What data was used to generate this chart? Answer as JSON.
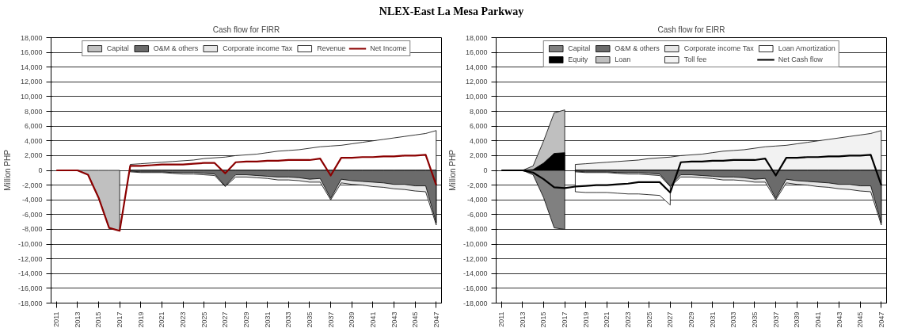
{
  "chart_data": [
    {
      "type": "area",
      "subtitle": "NLEX-East La Mesa Parkway",
      "title": "Cash flow for FIRR",
      "ylabel": "Million PHP",
      "legend": "top",
      "grid": "y",
      "x": [
        2011,
        2012,
        2013,
        2014,
        2015,
        2016,
        2017,
        2018,
        2019,
        2020,
        2021,
        2022,
        2023,
        2024,
        2025,
        2026,
        2027,
        2028,
        2029,
        2030,
        2031,
        2032,
        2033,
        2034,
        2035,
        2036,
        2037,
        2038,
        2039,
        2040,
        2041,
        2042,
        2043,
        2044,
        2045,
        2046,
        2047
      ],
      "xlim": [
        2010.5,
        2047.5
      ],
      "xticks": [
        2011,
        2013,
        2015,
        2017,
        2019,
        2021,
        2023,
        2025,
        2027,
        2029,
        2031,
        2033,
        2035,
        2037,
        2039,
        2041,
        2043,
        2045,
        2047
      ],
      "ylim": [
        -18000,
        18000
      ],
      "yticks": [
        {
          "value": -18000,
          "label": "-18,000"
        },
        {
          "value": -16000,
          "label": "-16,000"
        },
        {
          "value": -14000,
          "label": "-14,000"
        },
        {
          "value": -12000,
          "label": "-12,000"
        },
        {
          "value": -10000,
          "label": "-10,000"
        },
        {
          "value": -8000,
          "label": "-8,000"
        },
        {
          "value": -6000,
          "label": "-6,000"
        },
        {
          "value": -4000,
          "label": "-4,000"
        },
        {
          "value": -2000,
          "label": "-2,000"
        },
        0,
        {
          "value": 2000,
          "label": "2,000"
        },
        {
          "value": 4000,
          "label": "4,000"
        },
        {
          "value": 6000,
          "label": "6,000"
        },
        {
          "value": 8000,
          "label": "8,000"
        },
        {
          "value": 10000,
          "label": "10,000"
        },
        {
          "value": 12000,
          "label": "12,000"
        },
        {
          "value": 14000,
          "label": "14,000"
        },
        {
          "value": 16000,
          "label": "16,000"
        },
        {
          "value": 18000,
          "label": "18,000"
        }
      ],
      "series": [
        {
          "name": "Capital",
          "color": "#c0c0c0",
          "values": [
            null,
            null,
            0,
            -600,
            -3700,
            -7800,
            -8200,
            null,
            null,
            null,
            null,
            null,
            null,
            null,
            null,
            null,
            null,
            null,
            null,
            null,
            null,
            null,
            null,
            null,
            null,
            null,
            null,
            null,
            null,
            null,
            null,
            null,
            null,
            null,
            null,
            null,
            null
          ]
        },
        {
          "name": "O&M & others",
          "color": "#6b6b6b",
          "values": [
            null,
            null,
            null,
            null,
            null,
            null,
            null,
            -100,
            -200,
            -200,
            -200,
            -300,
            -300,
            -300,
            -400,
            -500,
            -2100,
            -600,
            -600,
            -700,
            -800,
            -900,
            -900,
            -1000,
            -1200,
            -1100,
            -3800,
            -1200,
            -1400,
            -1500,
            -1600,
            -1700,
            -1900,
            -1900,
            -2100,
            -2100,
            -7100
          ]
        },
        {
          "name": "Corporate income Tax",
          "color": "#e6e6e6",
          "values": [
            null,
            null,
            null,
            null,
            null,
            null,
            null,
            -200,
            -300,
            -300,
            -300,
            -400,
            -500,
            -500,
            -600,
            -700,
            -2200,
            -900,
            -900,
            -1000,
            -1100,
            -1300,
            -1300,
            -1400,
            -1600,
            -1600,
            -4000,
            -1700,
            -1900,
            -2000,
            -2200,
            -2300,
            -2500,
            -2600,
            -2800,
            -2900,
            -7400
          ]
        },
        {
          "name": "Revenue",
          "color": "#ffffff",
          "values": [
            null,
            null,
            null,
            null,
            null,
            null,
            null,
            800,
            900,
            1000,
            1100,
            1200,
            1300,
            1400,
            1600,
            1700,
            1800,
            2000,
            2100,
            2200,
            2400,
            2600,
            2700,
            2800,
            3000,
            3200,
            3300,
            3400,
            3600,
            3800,
            4000,
            4200,
            4400,
            4600,
            4800,
            5000,
            5400
          ]
        },
        {
          "name": "Net Income",
          "type": "line",
          "color": "#8b0000",
          "values": [
            0,
            0,
            0,
            -600,
            -3700,
            -7800,
            -8200,
            600,
            600,
            700,
            800,
            800,
            800,
            900,
            1000,
            1000,
            -400,
            1100,
            1200,
            1200,
            1300,
            1300,
            1400,
            1400,
            1400,
            1600,
            -700,
            1700,
            1700,
            1800,
            1800,
            1900,
            1900,
            2000,
            2000,
            2100,
            -2000
          ]
        }
      ]
    },
    {
      "type": "area",
      "title": "Cash flow for EIRR",
      "ylabel": "Million PHP",
      "legend": "top",
      "grid": "y",
      "x": [
        2011,
        2012,
        2013,
        2014,
        2015,
        2016,
        2017,
        2018,
        2019,
        2020,
        2021,
        2022,
        2023,
        2024,
        2025,
        2026,
        2027,
        2028,
        2029,
        2030,
        2031,
        2032,
        2033,
        2034,
        2035,
        2036,
        2037,
        2038,
        2039,
        2040,
        2041,
        2042,
        2043,
        2044,
        2045,
        2046,
        2047
      ],
      "xlim": [
        2010.5,
        2047.5
      ],
      "xticks": [
        2011,
        2013,
        2015,
        2017,
        2019,
        2021,
        2023,
        2025,
        2027,
        2029,
        2031,
        2033,
        2035,
        2037,
        2039,
        2041,
        2043,
        2045,
        2047
      ],
      "ylim": [
        -18000,
        18000
      ],
      "yticks": [
        {
          "value": -18000,
          "label": "-18,000"
        },
        {
          "value": -16000,
          "label": "-16,000"
        },
        {
          "value": -14000,
          "label": "-14,000"
        },
        {
          "value": -12000,
          "label": "-12,000"
        },
        {
          "value": -10000,
          "label": "-10,000"
        },
        {
          "value": -8000,
          "label": "-8,000"
        },
        {
          "value": -6000,
          "label": "-6,000"
        },
        {
          "value": -4000,
          "label": "-4,000"
        },
        {
          "value": -2000,
          "label": "-2,000"
        },
        0,
        {
          "value": 2000,
          "label": "2,000"
        },
        {
          "value": 4000,
          "label": "4,000"
        },
        {
          "value": 6000,
          "label": "6,000"
        },
        {
          "value": 8000,
          "label": "8,000"
        },
        {
          "value": 10000,
          "label": "10,000"
        },
        {
          "value": 12000,
          "label": "12,000"
        },
        {
          "value": 14000,
          "label": "14,000"
        },
        {
          "value": 16000,
          "label": "16,000"
        },
        {
          "value": 18000,
          "label": "18,000"
        }
      ],
      "series": [
        {
          "name": "Capital",
          "color": "#808080",
          "values": [
            null,
            null,
            0,
            -600,
            -3700,
            -7800,
            -8000,
            null,
            null,
            null,
            null,
            null,
            null,
            null,
            null,
            null,
            null,
            null,
            null,
            null,
            null,
            null,
            null,
            null,
            null,
            null,
            null,
            null,
            null,
            null,
            null,
            null,
            null,
            null,
            null,
            null,
            null
          ]
        },
        {
          "name": "O&M & others",
          "color": "#6b6b6b",
          "values": [
            null,
            null,
            null,
            null,
            null,
            null,
            null,
            -100,
            -200,
            -200,
            -200,
            -300,
            -300,
            -300,
            -400,
            -500,
            -2100,
            -600,
            -600,
            -700,
            -800,
            -900,
            -900,
            -1000,
            -1200,
            -1100,
            -3800,
            -1200,
            -1400,
            -1500,
            -1600,
            -1700,
            -1900,
            -1900,
            -2100,
            -2100,
            -7100
          ]
        },
        {
          "name": "Corporate income Tax",
          "color": "#e6e6e6",
          "values": [
            null,
            null,
            null,
            null,
            null,
            null,
            null,
            -200,
            -300,
            -300,
            -300,
            -400,
            -500,
            -500,
            -600,
            -700,
            -2200,
            -900,
            -900,
            -1000,
            -1100,
            -1300,
            -1300,
            -1400,
            -1600,
            -1600,
            -4000,
            -1700,
            -1900,
            -2000,
            -2200,
            -2300,
            -2500,
            -2600,
            -2800,
            -2900,
            -7400
          ]
        },
        {
          "name": "Loan Amortization",
          "color": "#ffffff",
          "values": [
            null,
            null,
            null,
            null,
            null,
            null,
            null,
            -2900,
            -3000,
            -3000,
            -3000,
            -3100,
            -3200,
            -3200,
            -3300,
            -3400,
            -4700,
            null,
            null,
            null,
            null,
            null,
            null,
            null,
            null,
            null,
            null,
            null,
            null,
            null,
            null,
            null,
            null,
            null,
            null,
            null,
            null
          ]
        },
        {
          "name": "Equity",
          "color": "#000000",
          "values": [
            null,
            null,
            0,
            100,
            1000,
            2300,
            2400,
            null,
            null,
            null,
            null,
            null,
            null,
            null,
            null,
            null,
            null,
            null,
            null,
            null,
            null,
            null,
            null,
            null,
            null,
            null,
            null,
            null,
            null,
            null,
            null,
            null,
            null,
            null,
            null,
            null,
            null
          ]
        },
        {
          "name": "Loan",
          "color": "#bfbfbf",
          "values": [
            null,
            null,
            0,
            600,
            4000,
            7800,
            8200,
            null,
            null,
            null,
            null,
            null,
            null,
            null,
            null,
            null,
            null,
            null,
            null,
            null,
            null,
            null,
            null,
            null,
            null,
            null,
            null,
            null,
            null,
            null,
            null,
            null,
            null,
            null,
            null,
            null,
            null
          ]
        },
        {
          "name": "Toll fee",
          "color": "#f2f2f2",
          "values": [
            null,
            null,
            null,
            null,
            null,
            null,
            null,
            800,
            900,
            1000,
            1100,
            1200,
            1300,
            1400,
            1600,
            1700,
            1800,
            2000,
            2100,
            2200,
            2400,
            2600,
            2700,
            2800,
            3000,
            3200,
            3300,
            3400,
            3600,
            3800,
            4000,
            4200,
            4400,
            4600,
            4800,
            5000,
            5400
          ]
        },
        {
          "name": "Net Cash flow",
          "type": "line",
          "color": "#000000",
          "values": [
            0,
            0,
            0,
            -300,
            -1200,
            -2300,
            -2400,
            -2200,
            -2100,
            -2000,
            -2000,
            -1900,
            -1800,
            -1600,
            -1600,
            -1600,
            -3000,
            1100,
            1200,
            1200,
            1300,
            1300,
            1400,
            1400,
            1400,
            1600,
            -700,
            1700,
            1700,
            1800,
            1800,
            1900,
            1900,
            2000,
            2000,
            2100,
            -2000
          ]
        }
      ]
    }
  ]
}
